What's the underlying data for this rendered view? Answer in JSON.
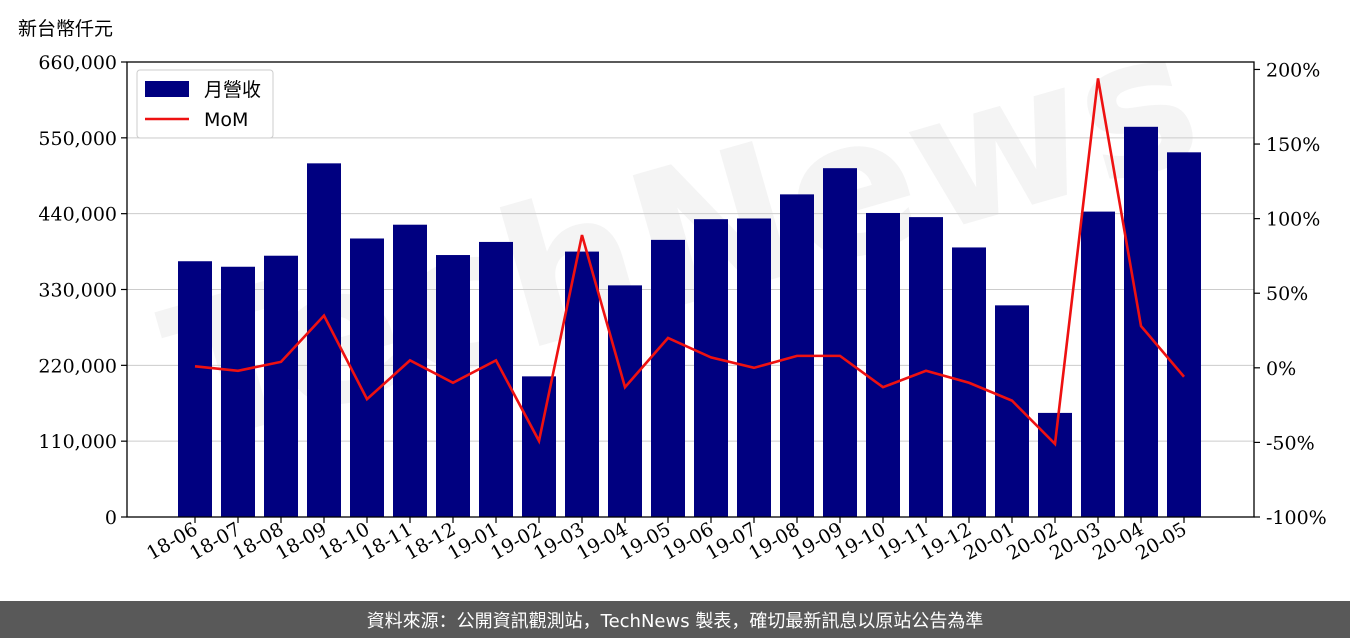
{
  "unit_label": "新台幣仟元",
  "footer_text": "資料來源：公開資訊觀測站，TechNews 製表，確切最新訊息以原站公告為準",
  "watermark": "TechNews",
  "colors": {
    "bar": "#000080",
    "line": "#ee1111",
    "grid": "#cccccc",
    "footer_bg": "#595959"
  },
  "chart_data": {
    "type": "bar",
    "categories": [
      "18-06",
      "18-07",
      "18-08",
      "18-09",
      "18-10",
      "18-11",
      "18-12",
      "19-01",
      "19-02",
      "19-03",
      "19-04",
      "19-05",
      "19-06",
      "19-07",
      "19-08",
      "19-09",
      "19-10",
      "19-11",
      "19-12",
      "20-01",
      "20-02",
      "20-03",
      "20-04",
      "20-05"
    ],
    "series": [
      {
        "name": "月營收",
        "axis": "left",
        "type": "bar",
        "values": [
          371000,
          363000,
          379000,
          513000,
          404000,
          424000,
          380000,
          399000,
          204000,
          385000,
          336000,
          402000,
          432000,
          433000,
          468000,
          506000,
          441000,
          435000,
          391000,
          307000,
          151000,
          443000,
          566000,
          529000
        ]
      },
      {
        "name": "MoM",
        "axis": "right",
        "type": "line",
        "values": [
          1,
          -2,
          4,
          35,
          -21,
          5,
          -10,
          5,
          -49,
          89,
          -13,
          20,
          7,
          0,
          8,
          8,
          -13,
          -2,
          -10,
          -22,
          -51,
          194,
          28,
          -6
        ]
      }
    ],
    "yleft": {
      "lim": [
        0,
        660000
      ],
      "ticks": [
        0,
        110000,
        220000,
        330000,
        440000,
        550000,
        660000
      ],
      "tick_labels": [
        "0",
        "110,000",
        "220,000",
        "330,000",
        "440,000",
        "550,000",
        "660,000"
      ]
    },
    "yright": {
      "lim": [
        -100,
        205
      ],
      "ticks": [
        -100,
        -50,
        0,
        50,
        100,
        150,
        200
      ],
      "tick_labels": [
        "-100%",
        "-50%",
        "0%",
        "50%",
        "100%",
        "150%",
        "200%"
      ]
    },
    "grid": true,
    "legend": {
      "placement": "upper-left",
      "entries": [
        "月營收",
        "MoM"
      ]
    }
  }
}
